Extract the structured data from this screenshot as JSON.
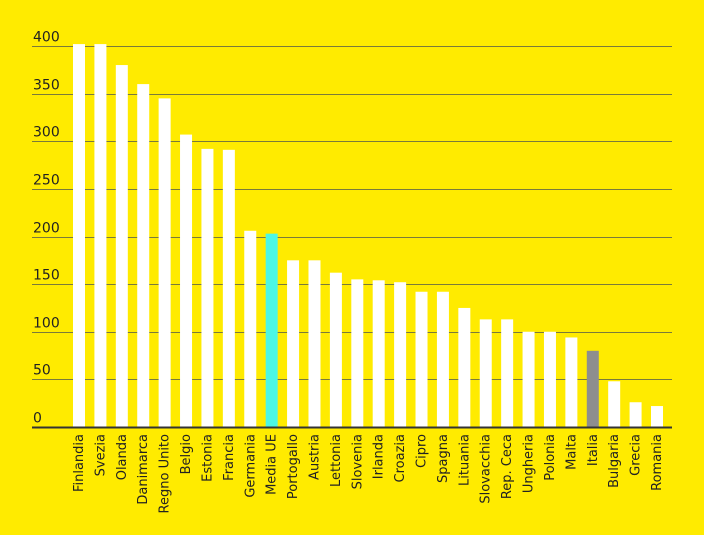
{
  "chart_data": {
    "type": "bar",
    "title": "",
    "xlabel": "",
    "ylabel": "",
    "ylim": [
      0,
      400
    ],
    "yticks": [
      0,
      50,
      100,
      150,
      200,
      250,
      300,
      350,
      400
    ],
    "grid": true,
    "categories": [
      "Finlandia",
      "Svezia",
      "Olanda",
      "Danimarca",
      "Regno Unito",
      "Belgio",
      "Estonia",
      "Francia",
      "Germania",
      "Media UE",
      "Portogallo",
      "Austria",
      "Lettonia",
      "Slovenia",
      "Irlanda",
      "Croazia",
      "Cipro",
      "Spagna",
      "Lituania",
      "Slovacchia",
      "Rep. Ceca",
      "Ungheria",
      "Polonia",
      "Malta",
      "Italia",
      "Bulgaria",
      "Grecia",
      "Romania"
    ],
    "values": [
      402,
      402,
      380,
      360,
      345,
      307,
      292,
      291,
      206,
      203,
      175,
      175,
      162,
      155,
      154,
      152,
      142,
      142,
      125,
      113,
      113,
      100,
      100,
      94,
      80,
      48,
      26,
      22
    ],
    "colors": {
      "background": "#FFEB00",
      "bar": "#FFFFFF",
      "highlight_media_ue": "#4CF7E4",
      "highlight_italia": "#8E8E8E",
      "grid": "#7A7A3A",
      "axis": "#333333"
    },
    "highlights": {
      "Media UE": "highlight_media_ue",
      "Italia": "highlight_italia"
    }
  }
}
